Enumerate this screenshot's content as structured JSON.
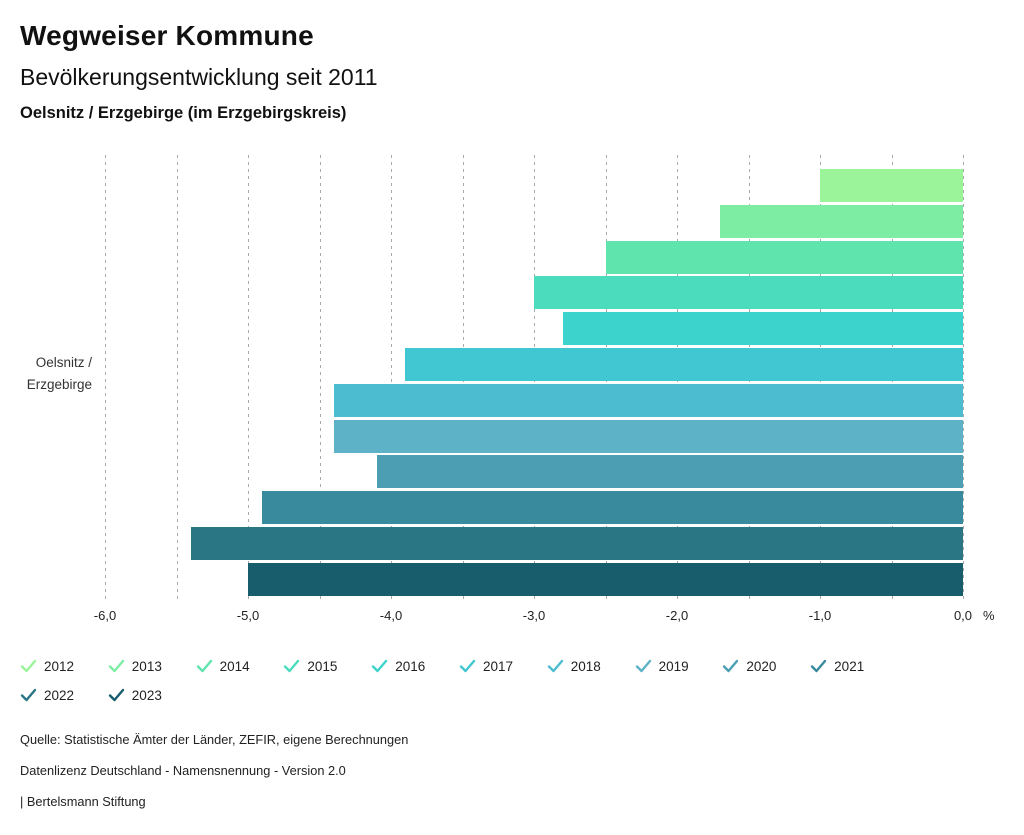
{
  "header": {
    "title": "Wegweiser Kommune",
    "subtitle": "Bevölkerungsentwicklung seit 2011",
    "location": "Oelsnitz / Erzgebirge (im Erzgebirgskreis)"
  },
  "chart_data": {
    "type": "bar",
    "orientation": "horizontal",
    "title": "Bevölkerungsentwicklung seit 2011",
    "category_label_lines": [
      "Oelsnitz /",
      "Erzgebirge"
    ],
    "unit": "%",
    "xlim": [
      -6.0,
      0.0
    ],
    "gridline_step": 0.5,
    "grid_style": "dotted-vertical",
    "x_ticks": [
      -6,
      -5,
      -4,
      -3,
      -2,
      -1,
      0
    ],
    "x_tick_labels": [
      "-6,0",
      "-5,0",
      "-4,0",
      "-3,0",
      "-2,0",
      "-1,0",
      "0,0"
    ],
    "series": [
      {
        "name": "2012",
        "value": -1.0,
        "color": "#9BF49A"
      },
      {
        "name": "2013",
        "value": -1.7,
        "color": "#7CEDA3"
      },
      {
        "name": "2014",
        "value": -2.5,
        "color": "#5FE4AD"
      },
      {
        "name": "2015",
        "value": -3.0,
        "color": "#4ADCBD"
      },
      {
        "name": "2016",
        "value": -2.8,
        "color": "#3DD3CD"
      },
      {
        "name": "2017",
        "value": -3.9,
        "color": "#41C7D2"
      },
      {
        "name": "2018",
        "value": -4.4,
        "color": "#4CBCD0"
      },
      {
        "name": "2019",
        "value": -4.4,
        "color": "#5DB2C7"
      },
      {
        "name": "2020",
        "value": -4.1,
        "color": "#4C9FB2"
      },
      {
        "name": "2021",
        "value": -4.9,
        "color": "#3A8A9D"
      },
      {
        "name": "2022",
        "value": -5.4,
        "color": "#2A7685"
      },
      {
        "name": "2023",
        "value": -5.0,
        "color": "#185D6C"
      }
    ],
    "legend": {
      "position": "bottom",
      "items_per_row": 10,
      "check_icon": "check-icon"
    }
  },
  "footer": {
    "lines": [
      "Quelle: Statistische Ämter der Länder, ZEFIR, eigene Berechnungen",
      "Datenlizenz Deutschland - Namensnennung - Version 2.0",
      "| Bertelsmann Stiftung"
    ]
  }
}
